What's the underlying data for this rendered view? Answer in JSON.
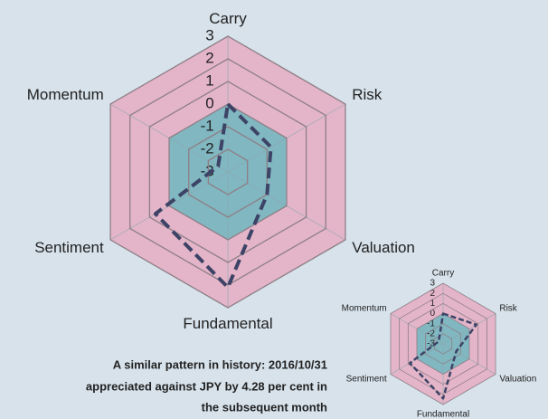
{
  "chart_data": [
    {
      "type": "radar",
      "categories": [
        "Carry",
        "Risk",
        "Valuation",
        "Fundamental",
        "Sentiment",
        "Momentum"
      ],
      "series": [
        {
          "color": "#3d4366",
          "values": [
            0,
            -0.8,
            -1,
            2.1,
            0.7,
            -2.5
          ]
        }
      ],
      "rlim": [
        -3,
        3
      ],
      "rticks": [
        -3,
        -2,
        -1,
        0,
        1,
        2,
        3
      ],
      "outer_color": "#e4b5c9",
      "inner_color": "#80b7c1"
    },
    {
      "type": "radar",
      "categories": [
        "Carry",
        "Risk",
        "Valuation",
        "Fundamental",
        "Sentiment",
        "Momentum"
      ],
      "series": [
        {
          "color": "#3d4366",
          "values": [
            0,
            0.8,
            -1.5,
            2.4,
            0.8,
            -2.5
          ]
        }
      ],
      "rlim": [
        -3,
        3
      ],
      "rticks": [
        -3,
        -2,
        -1,
        0,
        1,
        2,
        3
      ],
      "outer_color": "#e4b5c9",
      "inner_color": "#80b7c1"
    }
  ],
  "annotation": [
    "A similar pattern in history: 2016/10/31",
    "appreciated against JPY by 4.28 per cent in",
    "the subsequent month"
  ]
}
